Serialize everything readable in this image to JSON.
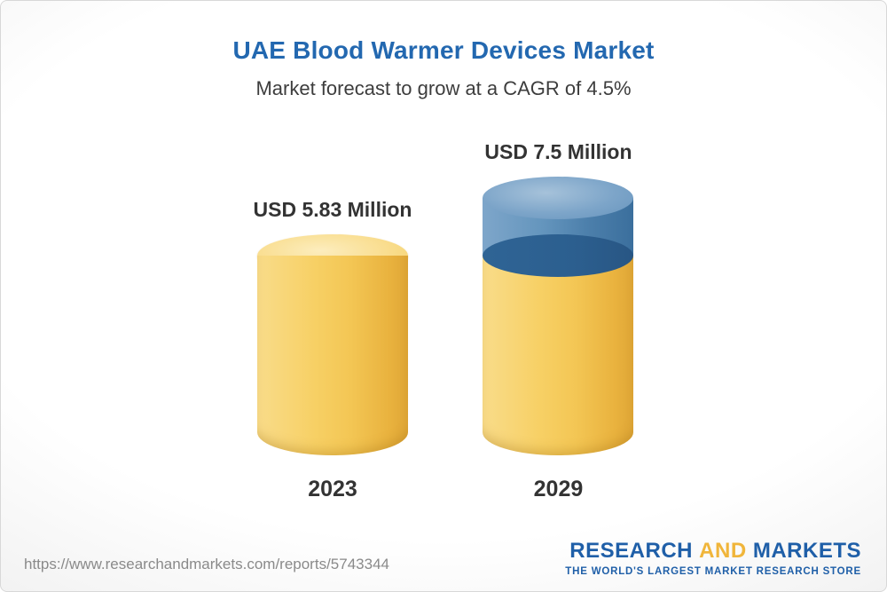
{
  "header": {
    "title": "UAE Blood Warmer Devices Market",
    "subtitle": "Market forecast to grow at a CAGR of 4.5%"
  },
  "chart_data": {
    "type": "bar",
    "variant": "3d-cylinder",
    "title": "UAE Blood Warmer Devices Market",
    "subtitle": "Market forecast to grow at a CAGR of 4.5%",
    "categories": [
      "2023",
      "2029"
    ],
    "values": [
      5.83,
      7.5
    ],
    "unit": "USD Million",
    "bar_labels": [
      "USD 5.83 Million",
      "USD 7.5 Million"
    ],
    "ylim": [
      0,
      7.5
    ],
    "legend_position": "none",
    "grid": false,
    "colors": {
      "base_segment": "#F6CE63",
      "growth_segment": "#5D8EB8",
      "title": "#2368B0",
      "label_text": "#333333"
    },
    "annotations": "2029 bar shows growth above 2023 level (7.5 - 5.83 = 1.67) as a blue top segment over the yellow base"
  },
  "footer": {
    "url": "https://www.researchandmarkets.com/reports/5743344",
    "logo": {
      "word1": "RESEARCH",
      "word2": "AND",
      "word3": "MARKETS",
      "tagline": "THE WORLD'S LARGEST MARKET RESEARCH STORE"
    }
  }
}
